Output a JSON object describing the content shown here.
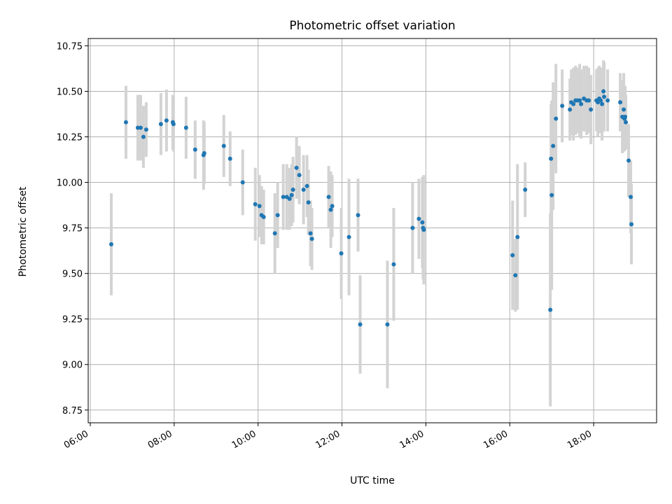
{
  "chart_data": {
    "type": "scatter",
    "title": "Photometric offset variation",
    "xlabel": "UTC time",
    "ylabel": "Photometric offset",
    "x_format": "HH:MM",
    "xlim": [
      "05:57",
      "19:30"
    ],
    "ylim": [
      8.68,
      10.79
    ],
    "x_ticks": [
      "06:00",
      "08:00",
      "10:00",
      "12:00",
      "14:00",
      "16:00",
      "18:00"
    ],
    "y_ticks": [
      "8.75",
      "9.00",
      "9.25",
      "9.50",
      "9.75",
      "10.00",
      "10.25",
      "10.50",
      "10.75"
    ],
    "grid": true,
    "point_color": "#1f77b4",
    "errorbar_color": "#d3d3d3",
    "points": [
      {
        "x": "06:30",
        "y": 9.66,
        "err": 0.28
      },
      {
        "x": "06:51",
        "y": 10.33,
        "err": 0.2
      },
      {
        "x": "07:08",
        "y": 10.3,
        "err": 0.18
      },
      {
        "x": "07:12",
        "y": 10.3,
        "err": 0.18
      },
      {
        "x": "07:16",
        "y": 10.25,
        "err": 0.17
      },
      {
        "x": "07:20",
        "y": 10.29,
        "err": 0.15
      },
      {
        "x": "07:41",
        "y": 10.32,
        "err": 0.17
      },
      {
        "x": "07:49",
        "y": 10.34,
        "err": 0.17
      },
      {
        "x": "07:58",
        "y": 10.33,
        "err": 0.15
      },
      {
        "x": "07:59",
        "y": 10.32,
        "err": 0.15
      },
      {
        "x": "08:17",
        "y": 10.3,
        "err": 0.17
      },
      {
        "x": "08:30",
        "y": 10.18,
        "err": 0.16
      },
      {
        "x": "08:42",
        "y": 10.15,
        "err": 0.19
      },
      {
        "x": "08:43",
        "y": 10.16,
        "err": 0.17
      },
      {
        "x": "09:11",
        "y": 10.2,
        "err": 0.17
      },
      {
        "x": "09:20",
        "y": 10.13,
        "err": 0.15
      },
      {
        "x": "09:38",
        "y": 10.0,
        "err": 0.18
      },
      {
        "x": "09:56",
        "y": 9.88,
        "err": 0.2
      },
      {
        "x": "10:02",
        "y": 9.87,
        "err": 0.17
      },
      {
        "x": "10:05",
        "y": 9.82,
        "err": 0.16
      },
      {
        "x": "10:08",
        "y": 9.81,
        "err": 0.15
      },
      {
        "x": "10:24",
        "y": 9.72,
        "err": 0.22
      },
      {
        "x": "10:28",
        "y": 9.82,
        "err": 0.18
      },
      {
        "x": "10:36",
        "y": 9.92,
        "err": 0.18
      },
      {
        "x": "10:41",
        "y": 9.92,
        "err": 0.18
      },
      {
        "x": "10:45",
        "y": 9.91,
        "err": 0.17
      },
      {
        "x": "10:48",
        "y": 9.93,
        "err": 0.17
      },
      {
        "x": "10:50",
        "y": 9.96,
        "err": 0.18
      },
      {
        "x": "10:55",
        "y": 10.08,
        "err": 0.17
      },
      {
        "x": "10:59",
        "y": 10.04,
        "err": 0.16
      },
      {
        "x": "11:05",
        "y": 9.96,
        "err": 0.19
      },
      {
        "x": "11:10",
        "y": 9.98,
        "err": 0.17
      },
      {
        "x": "11:12",
        "y": 9.89,
        "err": 0.18
      },
      {
        "x": "11:15",
        "y": 9.72,
        "err": 0.18
      },
      {
        "x": "11:17",
        "y": 9.69,
        "err": 0.17
      },
      {
        "x": "11:41",
        "y": 9.92,
        "err": 0.17
      },
      {
        "x": "11:44",
        "y": 9.85,
        "err": 0.21
      },
      {
        "x": "11:46",
        "y": 9.87,
        "err": 0.17
      },
      {
        "x": "11:59",
        "y": 9.61,
        "err": 0.25
      },
      {
        "x": "12:10",
        "y": 9.7,
        "err": 0.32
      },
      {
        "x": "12:23",
        "y": 9.82,
        "err": 0.2
      },
      {
        "x": "12:26",
        "y": 9.22,
        "err": 0.27
      },
      {
        "x": "13:05",
        "y": 9.22,
        "err": 0.35
      },
      {
        "x": "13:14",
        "y": 9.55,
        "err": 0.31
      },
      {
        "x": "13:41",
        "y": 9.75,
        "err": 0.25
      },
      {
        "x": "13:50",
        "y": 9.8,
        "err": 0.22
      },
      {
        "x": "13:55",
        "y": 9.78,
        "err": 0.25
      },
      {
        "x": "13:56",
        "y": 9.75,
        "err": 0.28
      },
      {
        "x": "13:57",
        "y": 9.74,
        "err": 0.3
      },
      {
        "x": "16:04",
        "y": 9.6,
        "err": 0.3
      },
      {
        "x": "16:08",
        "y": 9.49,
        "err": 0.2
      },
      {
        "x": "16:11",
        "y": 9.7,
        "err": 0.4
      },
      {
        "x": "16:22",
        "y": 9.96,
        "err": 0.15
      },
      {
        "x": "16:58",
        "y": 9.3,
        "err": 0.53
      },
      {
        "x": "16:59",
        "y": 10.13,
        "err": 0.3
      },
      {
        "x": "17:00",
        "y": 9.93,
        "err": 0.52
      },
      {
        "x": "17:02",
        "y": 10.2,
        "err": 0.35
      },
      {
        "x": "17:06",
        "y": 10.35,
        "err": 0.3
      },
      {
        "x": "17:15",
        "y": 10.42,
        "err": 0.2
      },
      {
        "x": "17:26",
        "y": 10.4,
        "err": 0.17
      },
      {
        "x": "17:28",
        "y": 10.44,
        "err": 0.18
      },
      {
        "x": "17:31",
        "y": 10.43,
        "err": 0.2
      },
      {
        "x": "17:34",
        "y": 10.45,
        "err": 0.19
      },
      {
        "x": "17:37",
        "y": 10.45,
        "err": 0.18
      },
      {
        "x": "17:40",
        "y": 10.45,
        "err": 0.2
      },
      {
        "x": "17:42",
        "y": 10.43,
        "err": 0.19
      },
      {
        "x": "17:46",
        "y": 10.46,
        "err": 0.18
      },
      {
        "x": "17:50",
        "y": 10.45,
        "err": 0.19
      },
      {
        "x": "17:53",
        "y": 10.45,
        "err": 0.18
      },
      {
        "x": "17:56",
        "y": 10.4,
        "err": 0.19
      },
      {
        "x": "18:04",
        "y": 10.45,
        "err": 0.17
      },
      {
        "x": "18:06",
        "y": 10.44,
        "err": 0.19
      },
      {
        "x": "18:08",
        "y": 10.46,
        "err": 0.18
      },
      {
        "x": "18:10",
        "y": 10.45,
        "err": 0.18
      },
      {
        "x": "18:12",
        "y": 10.43,
        "err": 0.2
      },
      {
        "x": "18:14",
        "y": 10.5,
        "err": 0.17
      },
      {
        "x": "18:15",
        "y": 10.47,
        "err": 0.19
      },
      {
        "x": "18:20",
        "y": 10.45,
        "err": 0.17
      },
      {
        "x": "18:38",
        "y": 10.44,
        "err": 0.16
      },
      {
        "x": "18:41",
        "y": 10.36,
        "err": 0.2
      },
      {
        "x": "18:43",
        "y": 10.4,
        "err": 0.2
      },
      {
        "x": "18:44",
        "y": 10.35,
        "err": 0.18
      },
      {
        "x": "18:45",
        "y": 10.36,
        "err": 0.17
      },
      {
        "x": "18:46",
        "y": 10.33,
        "err": 0.15
      },
      {
        "x": "18:50",
        "y": 10.12,
        "err": 0.2
      },
      {
        "x": "18:53",
        "y": 9.92,
        "err": 0.2
      },
      {
        "x": "18:54",
        "y": 9.77,
        "err": 0.22
      }
    ]
  }
}
